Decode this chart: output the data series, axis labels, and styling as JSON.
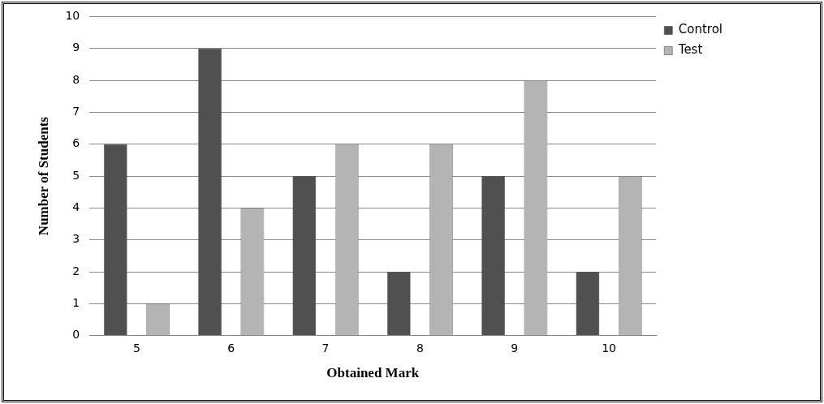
{
  "chart_data": {
    "type": "bar",
    "xlabel": "Obtained Mark",
    "ylabel": "Number of Students",
    "categories": [
      "5",
      "6",
      "7",
      "8",
      "9",
      "10"
    ],
    "series": [
      {
        "name": "Control",
        "color": "#505050",
        "values": [
          6,
          9,
          5,
          2,
          5,
          2
        ]
      },
      {
        "name": "Test",
        "color": "#b4b4b4",
        "values": [
          1,
          4,
          6,
          6,
          8,
          5
        ]
      }
    ],
    "ylim": [
      0,
      10
    ],
    "yticks": [
      0,
      1,
      2,
      3,
      4,
      5,
      6,
      7,
      8,
      9,
      10
    ],
    "grid": "y",
    "legend": "top right"
  }
}
